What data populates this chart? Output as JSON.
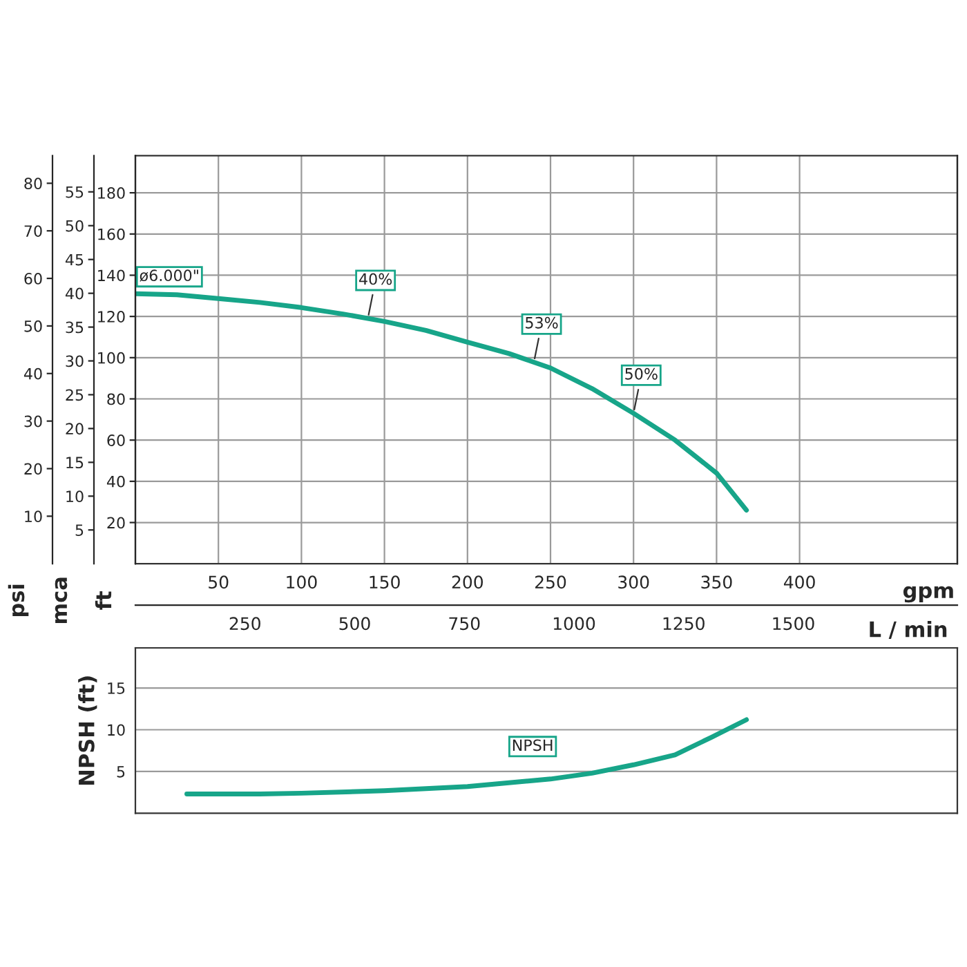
{
  "chart_data": [
    {
      "type": "line",
      "xlabel": "gpm",
      "x2label": "L / min",
      "ylabel": "ft",
      "y2label": "mca",
      "y3label": "psi",
      "xlim": [
        0,
        495
      ],
      "xticks": [
        50,
        100,
        150,
        200,
        250,
        300,
        350,
        400
      ],
      "x2lim": [
        0,
        1874
      ],
      "x2ticks": [
        250,
        500,
        750,
        1000,
        1250,
        1500
      ],
      "ylim": [
        0,
        198
      ],
      "yticks": [
        20,
        40,
        60,
        80,
        100,
        120,
        140,
        160,
        180
      ],
      "y2lim": [
        0,
        60.35
      ],
      "y2ticks": [
        5,
        10,
        15,
        20,
        25,
        30,
        35,
        40,
        45,
        50,
        55
      ],
      "y3lim": [
        0,
        85.8
      ],
      "y3ticks": [
        10,
        20,
        30,
        40,
        50,
        60,
        70,
        80
      ],
      "grid": true,
      "series": [
        {
          "name": "ø6.000\"",
          "color": "#17a589",
          "x": [
            0,
            25,
            50,
            75,
            100,
            125,
            150,
            175,
            200,
            225,
            250,
            275,
            300,
            325,
            350,
            368
          ],
          "values": [
            131,
            130.5,
            128.7,
            126.8,
            124.3,
            121.2,
            117.6,
            113.2,
            107.5,
            102,
            95,
            85,
            73,
            60,
            44,
            26
          ]
        }
      ],
      "annotations": [
        {
          "text": "40%",
          "x": 140,
          "y": 119
        },
        {
          "text": "53%",
          "x": 240,
          "y": 97.8
        },
        {
          "text": "50%",
          "x": 300,
          "y": 73
        }
      ]
    },
    {
      "type": "line",
      "ylabel": "NPSH (ft)",
      "xlim": [
        0,
        495
      ],
      "ylim": [
        0,
        19.8
      ],
      "yticks": [
        5,
        10,
        15
      ],
      "tick_labels": "y",
      "grid": true,
      "series": [
        {
          "name": "NPSH",
          "color": "#17a589",
          "x": [
            31,
            75,
            100,
            150,
            200,
            250,
            275,
            300,
            325,
            347,
            368
          ],
          "values": [
            2.3,
            2.3,
            2.4,
            2.7,
            3.2,
            4.1,
            4.8,
            5.8,
            7.0,
            9.1,
            11.2
          ]
        }
      ]
    }
  ]
}
